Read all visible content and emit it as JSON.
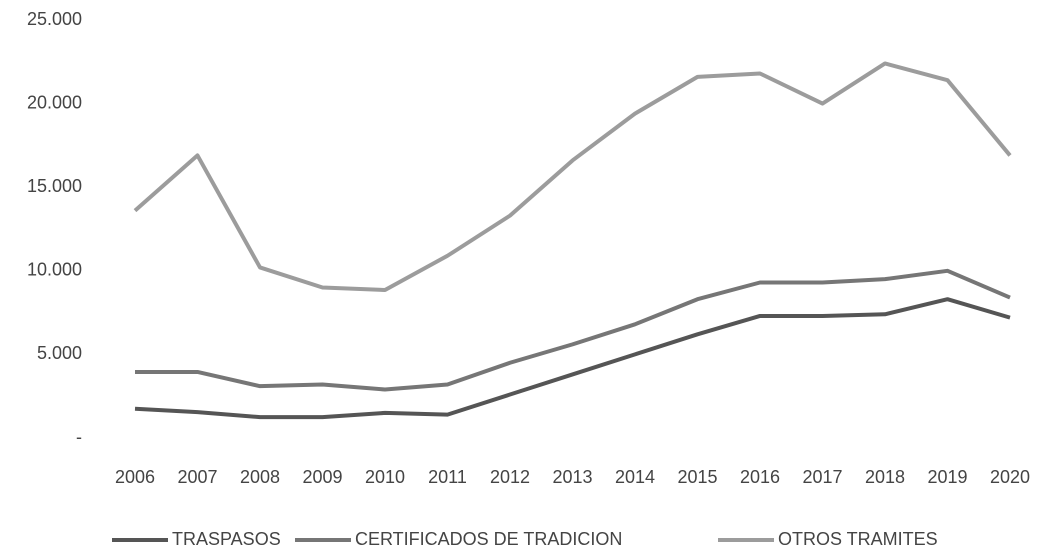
{
  "chart_data": {
    "type": "line",
    "categories": [
      "2006",
      "2007",
      "2008",
      "2009",
      "2010",
      "2011",
      "2012",
      "2013",
      "2014",
      "2015",
      "2016",
      "2017",
      "2018",
      "2019",
      "2020"
    ],
    "series": [
      {
        "name": "TRASPASOS",
        "color": "#555555",
        "values": [
          1750,
          1550,
          1250,
          1250,
          1500,
          1400,
          2600,
          3800,
          5000,
          6200,
          7300,
          7300,
          7400,
          8300,
          7200
        ]
      },
      {
        "name": "CERTIFICADOS DE TRADICION",
        "color": "#767676",
        "values": [
          3950,
          3950,
          3100,
          3200,
          2900,
          3200,
          4500,
          5600,
          6800,
          8300,
          9300,
          9300,
          9500,
          10000,
          8400
        ]
      },
      {
        "name": "OTROS TRAMITES",
        "color": "#9c9c9c",
        "values": [
          13600,
          16900,
          10200,
          9000,
          8850,
          10900,
          13300,
          16600,
          19400,
          21600,
          21800,
          20000,
          22400,
          21400,
          16900
        ]
      }
    ],
    "ylim": [
      0,
      25000
    ],
    "yticks": [
      {
        "value": 0,
        "label": "-"
      },
      {
        "value": 5000,
        "label": "5.000"
      },
      {
        "value": 10000,
        "label": "10.000"
      },
      {
        "value": 15000,
        "label": "15.000"
      },
      {
        "value": 20000,
        "label": "20.000"
      },
      {
        "value": 25000,
        "label": "25.000"
      }
    ]
  }
}
